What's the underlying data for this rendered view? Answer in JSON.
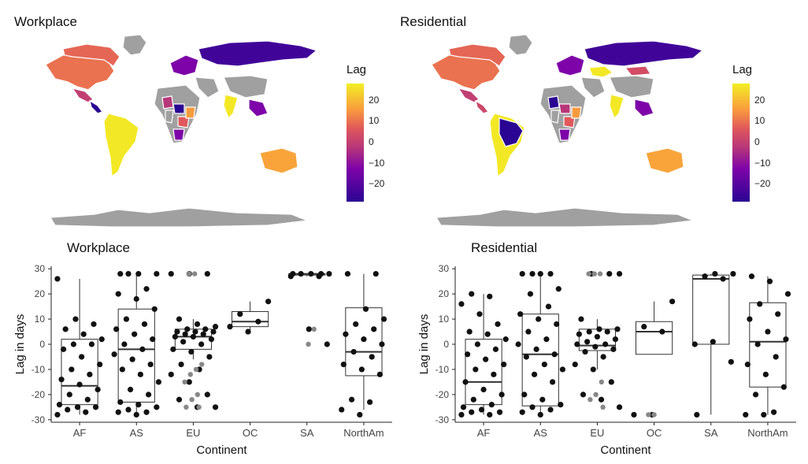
{
  "panels_top": [
    {
      "title": "Workplace",
      "legend_title": "Lag",
      "legend_ticks": [
        "20",
        "10",
        "0",
        "−10",
        "−20"
      ]
    },
    {
      "title": "Residential",
      "legend_title": "Lag",
      "legend_ticks": [
        "20",
        "10",
        "0",
        "−10",
        "−20"
      ]
    }
  ],
  "colors": {
    "lag_low": "#2a0593",
    "lag_mid_low": "#7e03a8",
    "lag_mid": "#b73779",
    "lag_mid_high": "#e0585b",
    "lag_high_mid": "#f99b3e",
    "lag_high": "#f2ef23",
    "no_data": "#a0a0a0"
  },
  "chart_data": [
    {
      "type": "map",
      "title": "Workplace",
      "legend_title": "Lag",
      "legend_range": [
        -28,
        28
      ],
      "regions": [
        {
          "name": "North America",
          "lag": 10
        },
        {
          "name": "Canada",
          "lag": 8
        },
        {
          "name": "Greenland",
          "lag": null
        },
        {
          "name": "Mexico",
          "lag": -3
        },
        {
          "name": "Central America",
          "lag": -28
        },
        {
          "name": "South America",
          "lag": 27
        },
        {
          "name": "Russia",
          "lag": -25
        },
        {
          "name": "China",
          "lag": null
        },
        {
          "name": "India",
          "lag": 27
        },
        {
          "name": "Australia",
          "lag": 18
        },
        {
          "name": "Antarctica",
          "lag": null
        }
      ]
    },
    {
      "type": "map",
      "title": "Residential",
      "legend_title": "Lag",
      "legend_range": [
        -28,
        28
      ],
      "regions": [
        {
          "name": "North America",
          "lag": 10
        },
        {
          "name": "Canada",
          "lag": 8
        },
        {
          "name": "Greenland",
          "lag": null
        },
        {
          "name": "Mexico",
          "lag": -3
        },
        {
          "name": "Central America",
          "lag": 0
        },
        {
          "name": "South America",
          "lag": 27
        },
        {
          "name": "Brazil",
          "lag": -28
        },
        {
          "name": "Russia",
          "lag": -25
        },
        {
          "name": "Kazakhstan",
          "lag": 27
        },
        {
          "name": "Mongolia",
          "lag": 2
        },
        {
          "name": "China",
          "lag": null
        },
        {
          "name": "India",
          "lag": 27
        },
        {
          "name": "Australia",
          "lag": 18
        },
        {
          "name": "Antarctica",
          "lag": null
        }
      ]
    },
    {
      "type": "box",
      "title": "Workplace",
      "xlabel": "Continent",
      "ylabel": "Lag in days",
      "categories": [
        "AF",
        "AS",
        "EU",
        "OC",
        "SA",
        "NorthAm"
      ],
      "ylim": [
        -31,
        31
      ],
      "yticks": [
        -30,
        -20,
        -10,
        0,
        10,
        20,
        30
      ],
      "boxes": [
        {
          "q1": -24,
          "median": -16.5,
          "q3": 2,
          "whisker_low": -28,
          "whisker_high": 26
        },
        {
          "q1": -23,
          "median": -2,
          "q3": 14,
          "whisker_low": -28,
          "whisker_high": 28
        },
        {
          "q1": -2,
          "median": 3,
          "q3": 6,
          "whisker_low": -6,
          "whisker_high": 10
        },
        {
          "q1": 7,
          "median": 9,
          "q3": 13,
          "whisker_low": 5,
          "whisker_high": 17
        },
        {
          "q1": 27.5,
          "median": 28,
          "q3": 28,
          "whisker_low": 27,
          "whisker_high": 28
        },
        {
          "q1": -12.5,
          "median": -3,
          "q3": 14.5,
          "whisker_low": -26,
          "whisker_high": 28
        }
      ],
      "points": [
        [
          -28,
          -27,
          -26,
          -25,
          -25,
          -24,
          -22,
          -20,
          -18,
          -16,
          -14,
          -12,
          -10,
          -8,
          -5,
          -2,
          0,
          0,
          2,
          4,
          6,
          8,
          10,
          26
        ],
        [
          -28,
          -27,
          -27,
          -26,
          -25,
          -24,
          -23,
          -20,
          -18,
          -15,
          -12,
          -10,
          -8,
          -6,
          -4,
          -2,
          0,
          2,
          4,
          6,
          8,
          10,
          14,
          18,
          20,
          22,
          28,
          28,
          28,
          28
        ],
        [
          -25,
          -25,
          -22,
          -20,
          -15,
          -12,
          -10,
          -8,
          -5,
          -3,
          -2,
          0,
          1,
          2,
          3,
          3,
          4,
          4,
          5,
          5,
          5,
          6,
          6,
          7,
          8,
          10,
          28,
          28,
          28
        ],
        [
          5,
          7,
          9,
          12,
          17
        ],
        [
          0,
          6,
          27,
          27,
          28,
          28,
          28,
          28,
          28
        ],
        [
          -28,
          -26,
          -23,
          -22,
          -12,
          -10,
          -8,
          -5,
          -3,
          0,
          2,
          4,
          6,
          8,
          10,
          14,
          28,
          28
        ]
      ],
      "outliers": [
        [],
        [],
        [
          -25,
          -25,
          -22,
          -20,
          -15,
          -12,
          -10,
          -8,
          28,
          28
        ],
        [],
        [
          0,
          6
        ],
        []
      ]
    },
    {
      "type": "box",
      "title": "Residential",
      "xlabel": "Continent",
      "ylabel": "Lag in days",
      "categories": [
        "AF",
        "AS",
        "EU",
        "OC",
        "SA",
        "NorthAm"
      ],
      "ylim": [
        -31,
        31
      ],
      "yticks": [
        -30,
        -20,
        -10,
        0,
        10,
        20,
        30
      ],
      "boxes": [
        {
          "q1": -24,
          "median": -15,
          "q3": 2,
          "whisker_low": -28,
          "whisker_high": 20
        },
        {
          "q1": -24.5,
          "median": -4,
          "q3": 12,
          "whisker_low": -28,
          "whisker_high": 28
        },
        {
          "q1": -2.5,
          "median": -0.5,
          "q3": 6,
          "whisker_low": -10,
          "whisker_high": 10
        },
        {
          "q1": -4,
          "median": 5,
          "q3": 9,
          "whisker_low": -4,
          "whisker_high": 17
        },
        {
          "q1": 0,
          "median": 26,
          "q3": 27.5,
          "whisker_low": -28,
          "whisker_high": 28
        },
        {
          "q1": -17,
          "median": 1,
          "q3": 16.5,
          "whisker_low": -28,
          "whisker_high": 27
        }
      ],
      "points": [
        [
          -28,
          -28,
          -27,
          -27,
          -26,
          -25,
          -24,
          -22,
          -20,
          -18,
          -15,
          -12,
          -10,
          -8,
          -6,
          -4,
          -2,
          0,
          2,
          4,
          5,
          8,
          12,
          16,
          19,
          20
        ],
        [
          -28,
          -27,
          -26,
          -25,
          -24,
          -22,
          -20,
          -15,
          -12,
          -10,
          -8,
          -5,
          -4,
          -2,
          0,
          2,
          5,
          8,
          10,
          12,
          15,
          20,
          22,
          28,
          28,
          28,
          28
        ],
        [
          -25,
          -22,
          -20,
          -15,
          -10,
          -8,
          -5,
          -3,
          -2,
          -1,
          0,
          0,
          1,
          2,
          3,
          4,
          5,
          5,
          6,
          6,
          10,
          28,
          28,
          28
        ],
        [
          -28,
          -28,
          5,
          7,
          17
        ],
        [
          -7,
          1,
          0,
          26,
          27,
          28,
          28,
          -28
        ],
        [
          -28,
          -28,
          -27,
          -20,
          -17,
          -12,
          -8,
          -5,
          0,
          2,
          5,
          10,
          12,
          16,
          20,
          25,
          27
        ]
      ],
      "outliers": [
        [],
        [],
        [
          -25,
          -22,
          -20,
          -15,
          28,
          28,
          28
        ],
        [
          -28,
          -28
        ],
        [],
        []
      ]
    }
  ]
}
